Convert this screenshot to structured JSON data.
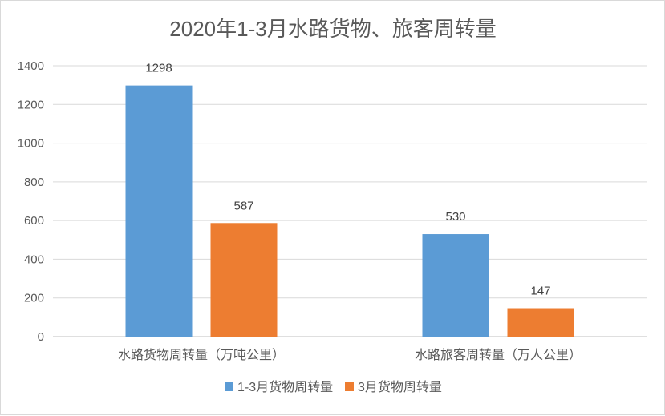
{
  "chart_data": {
    "type": "bar",
    "title": "2020年1-3月水路货物、旅客周转量",
    "categories": [
      "水路货物周转量（万吨公里）",
      "水路旅客周转量（万人公里）"
    ],
    "series": [
      {
        "name": "1-3月货物周转量",
        "values": [
          1298,
          530
        ],
        "color": "#5b9bd5"
      },
      {
        "name": "3月货物周转量",
        "values": [
          587,
          147
        ],
        "color": "#ed7d31"
      }
    ],
    "ylim": [
      0,
      1400
    ],
    "yticks": [
      0,
      200,
      400,
      600,
      800,
      1000,
      1200,
      1400
    ],
    "grid": true,
    "legend_position": "bottom"
  }
}
